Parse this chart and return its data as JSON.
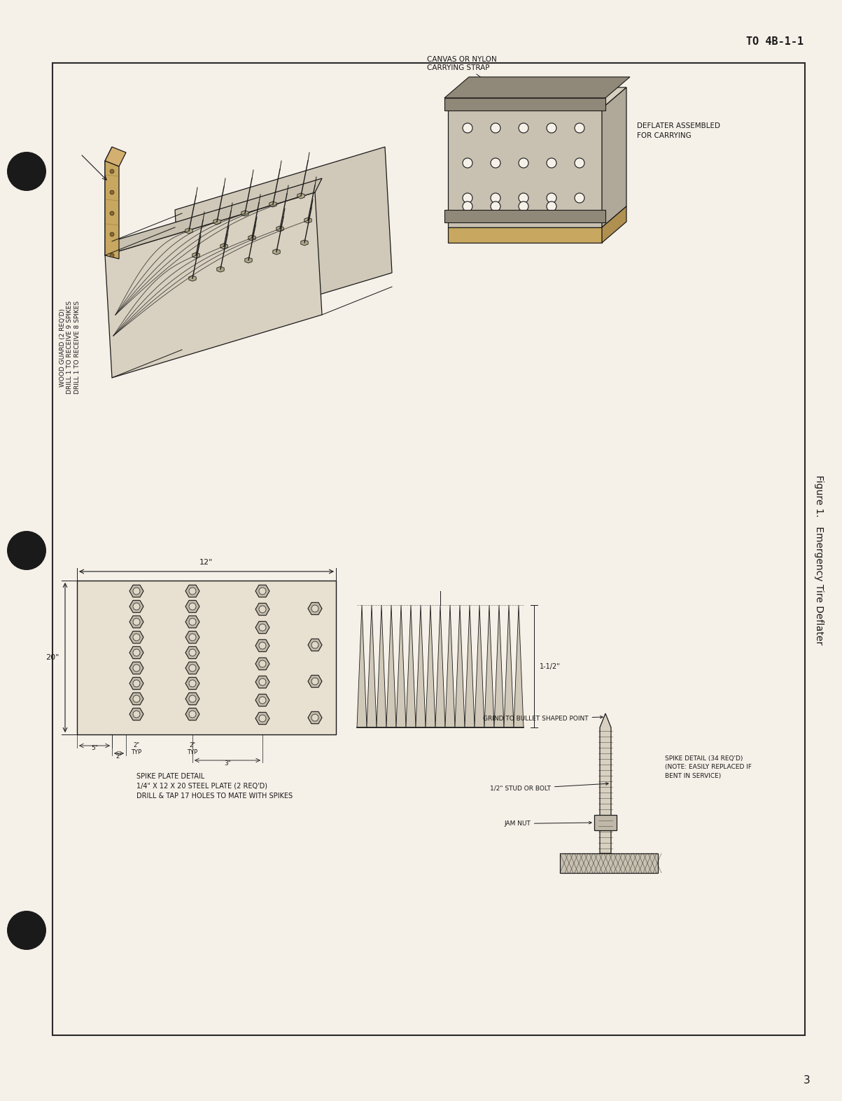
{
  "page_background": "#f5f0e8",
  "border_color": "#2a2a2a",
  "text_color": "#1a1a1a",
  "header_text": "TO 4B-1-1",
  "footer_page_num": "3",
  "figure_caption": "Figure 1.   Emergency Tire Deflater",
  "annotations": {
    "wood_guard": "WOOD GUARD (2 REQ'D)\nDRILL 1 TO RECEIVE 9 SPIKES\nDRILL 1 TO RECEIVE 8 SPIKES",
    "canvas_strap": "CANVAS OR NYLON\nCARRYING STRAP",
    "deflater_assembled": "DEFLATER ASSEMBLED\nFOR CARRYING",
    "spike_plate_detail": "SPIKE PLATE DETAIL\n1/4\" X 12 X 20 STEEL PLATE (2 REQ'D)\nDRILL & TAP 17 HOLES TO MATE WITH SPIKES",
    "grind_to_bullet": "GRIND TO BULLET SHAPED POINT",
    "stud_or_bolt": "1/2\" STUD OR BOLT",
    "jam_nut": "JAM NUT",
    "spike_detail": "SPIKE DETAIL (34 REQ'D)\n(NOTE: EASILY REPLACED IF\nBENT IN SERVICE)",
    "dim_12": "12\"",
    "dim_20": "20\"",
    "dim_1_half": "1-1/2\""
  }
}
